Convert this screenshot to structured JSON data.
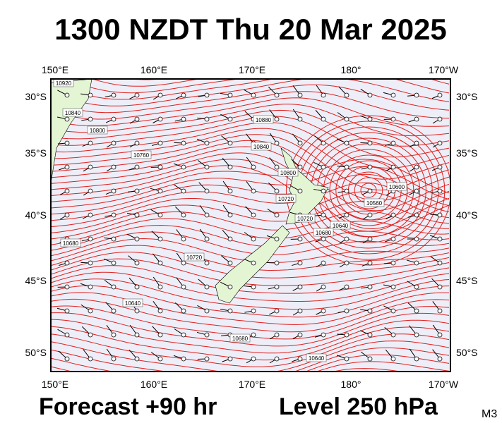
{
  "header": {
    "title": "1300 NZDT Thu 20 Mar 2025"
  },
  "map": {
    "top_labels": [
      "150°E",
      "160°E",
      "170°E",
      "180°",
      "170°W"
    ],
    "bottom_labels": [
      "150°E",
      "160°E",
      "170°E",
      "180°",
      "170°W"
    ],
    "left_labels": [
      "30°S",
      "35°S",
      "40°S",
      "45°S",
      "50°S"
    ],
    "right_labels": [
      "30°S",
      "35°S",
      "40°S",
      "45°S",
      "50°S"
    ],
    "contour_labels": [
      "10920",
      "10840",
      "10800",
      "10760",
      "10880",
      "10840",
      "10800",
      "10720",
      "10560",
      "10600",
      "10640",
      "10680",
      "10720",
      "10720",
      "10680",
      "10640",
      "10680",
      "10640"
    ]
  },
  "footer": {
    "forecast": "Forecast +90 hr",
    "level": "Level 250 hPa",
    "model": "M3"
  }
}
